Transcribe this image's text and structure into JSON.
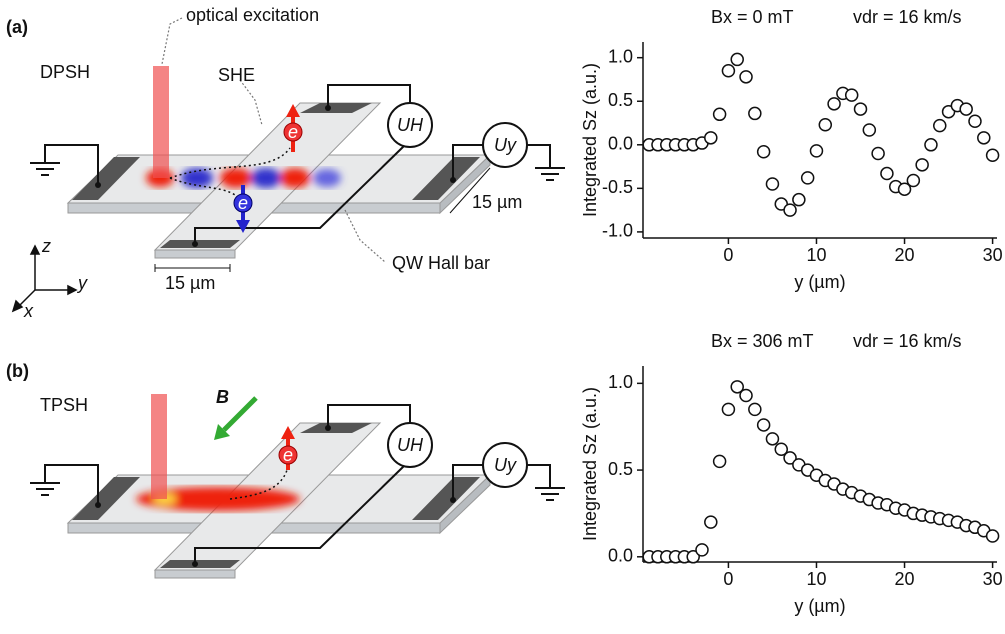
{
  "chart_data": [
    {
      "type": "scatter",
      "annotations": [
        "Bx = 0 mT",
        "vdr = 16 km/s"
      ],
      "xlabel": "y (µm)",
      "ylabel": "Integrated Sz (a.u.)",
      "x": [
        -9,
        -8,
        -7,
        -6,
        -5,
        -4,
        -3,
        -2,
        -1,
        0,
        1,
        2,
        3,
        4,
        5,
        6,
        7,
        8,
        9,
        10,
        11,
        12,
        13,
        14,
        15,
        16,
        17,
        18,
        19,
        20,
        21,
        22,
        23,
        24,
        25,
        26,
        27,
        28,
        29,
        30
      ],
      "values": [
        0,
        0,
        0,
        0,
        0,
        0,
        0.02,
        0.08,
        0.35,
        0.85,
        0.98,
        0.78,
        0.36,
        -0.08,
        -0.45,
        -0.68,
        -0.75,
        -0.63,
        -0.38,
        -0.07,
        0.23,
        0.47,
        0.59,
        0.57,
        0.41,
        0.17,
        -0.1,
        -0.33,
        -0.48,
        -0.51,
        -0.41,
        -0.23,
        0,
        0.22,
        0.38,
        0.45,
        0.41,
        0.27,
        0.08,
        -0.12
      ],
      "xlim": [
        -9.7,
        30.5
      ],
      "ylim": [
        -1.07,
        1.18
      ],
      "xticks": [
        0,
        10,
        20,
        30
      ],
      "yticks": [
        {
          "value": -1,
          "label": "-1.0"
        },
        {
          "value": -0.5,
          "label": "-0.5"
        },
        {
          "value": 0,
          "label": "0.0"
        },
        {
          "value": 0.5,
          "label": "0.5"
        },
        {
          "value": 1,
          "label": "1.0"
        }
      ]
    },
    {
      "type": "scatter",
      "annotations": [
        "Bx = 306 mT",
        "vdr = 16 km/s"
      ],
      "xlabel": "y (µm)",
      "ylabel": "Integrated Sz (a.u.)",
      "x": [
        -9,
        -8,
        -7,
        -6,
        -5,
        -4,
        -3,
        -2,
        -1,
        0,
        1,
        2,
        3,
        4,
        5,
        6,
        7,
        8,
        9,
        10,
        11,
        12,
        13,
        14,
        15,
        16,
        17,
        18,
        19,
        20,
        21,
        22,
        23,
        24,
        25,
        26,
        27,
        28,
        29,
        30
      ],
      "values": [
        0,
        0,
        0,
        0,
        0,
        0,
        0.04,
        0.2,
        0.55,
        0.85,
        0.98,
        0.93,
        0.85,
        0.76,
        0.68,
        0.62,
        0.57,
        0.53,
        0.5,
        0.47,
        0.44,
        0.42,
        0.39,
        0.37,
        0.35,
        0.33,
        0.31,
        0.3,
        0.28,
        0.27,
        0.25,
        0.24,
        0.23,
        0.22,
        0.21,
        0.2,
        0.18,
        0.17,
        0.15,
        0.12
      ],
      "xlim": [
        -9.7,
        30.5
      ],
      "ylim": [
        -0.03,
        1.1
      ],
      "xticks": [
        0,
        10,
        20,
        30
      ],
      "yticks": [
        {
          "value": 0,
          "label": "0.0"
        },
        {
          "value": 0.5,
          "label": "0.5"
        },
        {
          "value": 1,
          "label": "1.0"
        }
      ]
    }
  ],
  "diagrams": [
    {
      "panel_label": "(a)",
      "mode": "DPSH",
      "beam_label": "optical excitation",
      "effect_label": "SHE",
      "hall_voltage": "UH",
      "long_voltage": "Uy",
      "width_labels": [
        "15 µm",
        "15 µm"
      ],
      "device_label": "QW Hall bar",
      "axes": [
        "z",
        "y",
        "x"
      ],
      "electron": "e"
    },
    {
      "panel_label": "(b)",
      "mode": "TPSH",
      "field_label": "B",
      "hall_voltage": "UH",
      "long_voltage": "Uy",
      "electron": "e"
    }
  ]
}
